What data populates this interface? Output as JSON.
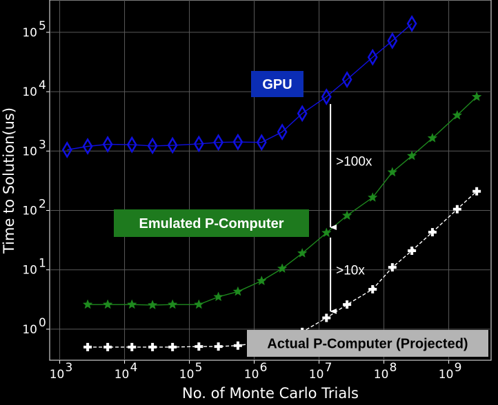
{
  "chart_data": {
    "type": "line",
    "xlabel": "No. of Monte Carlo Trials",
    "ylabel": "Time to Solution(us)",
    "xscale": "log",
    "yscale": "log",
    "xlim": [
      700,
      4500000000
    ],
    "ylim": [
      0.3,
      350000
    ],
    "xticks": [
      {
        "value": 1000,
        "base": "10",
        "exp": "3"
      },
      {
        "value": 10000,
        "base": "10",
        "exp": "4"
      },
      {
        "value": 100000,
        "base": "10",
        "exp": "5"
      },
      {
        "value": 1000000,
        "base": "10",
        "exp": "6"
      },
      {
        "value": 10000000,
        "base": "10",
        "exp": "7"
      },
      {
        "value": 100000000,
        "base": "10",
        "exp": "8"
      },
      {
        "value": 1000000000,
        "base": "10",
        "exp": "9"
      }
    ],
    "yticks": [
      {
        "value": 1,
        "base": "10",
        "exp": "0"
      },
      {
        "value": 10,
        "base": "10",
        "exp": "1"
      },
      {
        "value": 100,
        "base": "10",
        "exp": "2"
      },
      {
        "value": 1000,
        "base": "10",
        "exp": "3"
      },
      {
        "value": 10000,
        "base": "10",
        "exp": "4"
      },
      {
        "value": 100000,
        "base": "10",
        "exp": "5"
      }
    ],
    "grid": true,
    "series": [
      {
        "name": "GPU",
        "color": "#1010e0",
        "marker": "diamond",
        "x": [
          1300,
          2700,
          5500,
          13000,
          27000,
          55000,
          140000,
          280000,
          560000,
          1300000,
          2700000,
          5500000,
          13000000,
          27000000,
          67000000,
          135000000,
          270000000
        ],
        "y": [
          1050,
          1200,
          1300,
          1280,
          1220,
          1250,
          1320,
          1400,
          1420,
          1400,
          2100,
          4300,
          8200,
          16000,
          38000,
          72000,
          140000
        ]
      },
      {
        "name": "Emulated P-Computer",
        "color": "#1e8a1e",
        "marker": "star",
        "x": [
          2700,
          5500,
          13000,
          27000,
          55000,
          140000,
          280000,
          560000,
          1300000,
          2700000,
          5500000,
          13000000,
          27000000,
          67000000,
          135000000,
          270000000,
          560000000,
          1350000000,
          2700000000
        ],
        "y": [
          2.6,
          2.6,
          2.6,
          2.55,
          2.6,
          2.6,
          3.5,
          4.3,
          6.5,
          10.5,
          19,
          42,
          82,
          165,
          440,
          830,
          1650,
          4000,
          8200
        ]
      },
      {
        "name": "Actual P-Computer (Projected)",
        "color": "#ffffff",
        "marker": "plus",
        "x": [
          2700,
          5500,
          13000,
          27000,
          55000,
          140000,
          280000,
          560000,
          1300000,
          2700000,
          5500000,
          13000000,
          27000000,
          67000000,
          135000000,
          270000000,
          560000000,
          1350000000,
          2700000000
        ],
        "y": [
          0.5,
          0.5,
          0.5,
          0.5,
          0.5,
          0.51,
          0.51,
          0.53,
          0.6,
          0.7,
          0.9,
          1.55,
          2.6,
          4.7,
          11,
          21,
          43,
          105,
          210
        ]
      }
    ],
    "labels": [
      {
        "text": "GPU",
        "bg": "#0b2db5",
        "fg": "#ffffff"
      },
      {
        "text": "Emulated P-Computer",
        "bg": "#1e7a1e",
        "fg": "#ffffff"
      },
      {
        "text": "Actual P-Computer (Projected)",
        "bg": "#b4b4b4",
        "fg": "#000000"
      }
    ],
    "annotations": [
      {
        "text": ">100x",
        "x": 15000000,
        "y_from": 6200,
        "y_to": 52
      },
      {
        "text": ">10x",
        "x": 15000000,
        "y_from": 35,
        "y_to": 2.0
      }
    ]
  }
}
